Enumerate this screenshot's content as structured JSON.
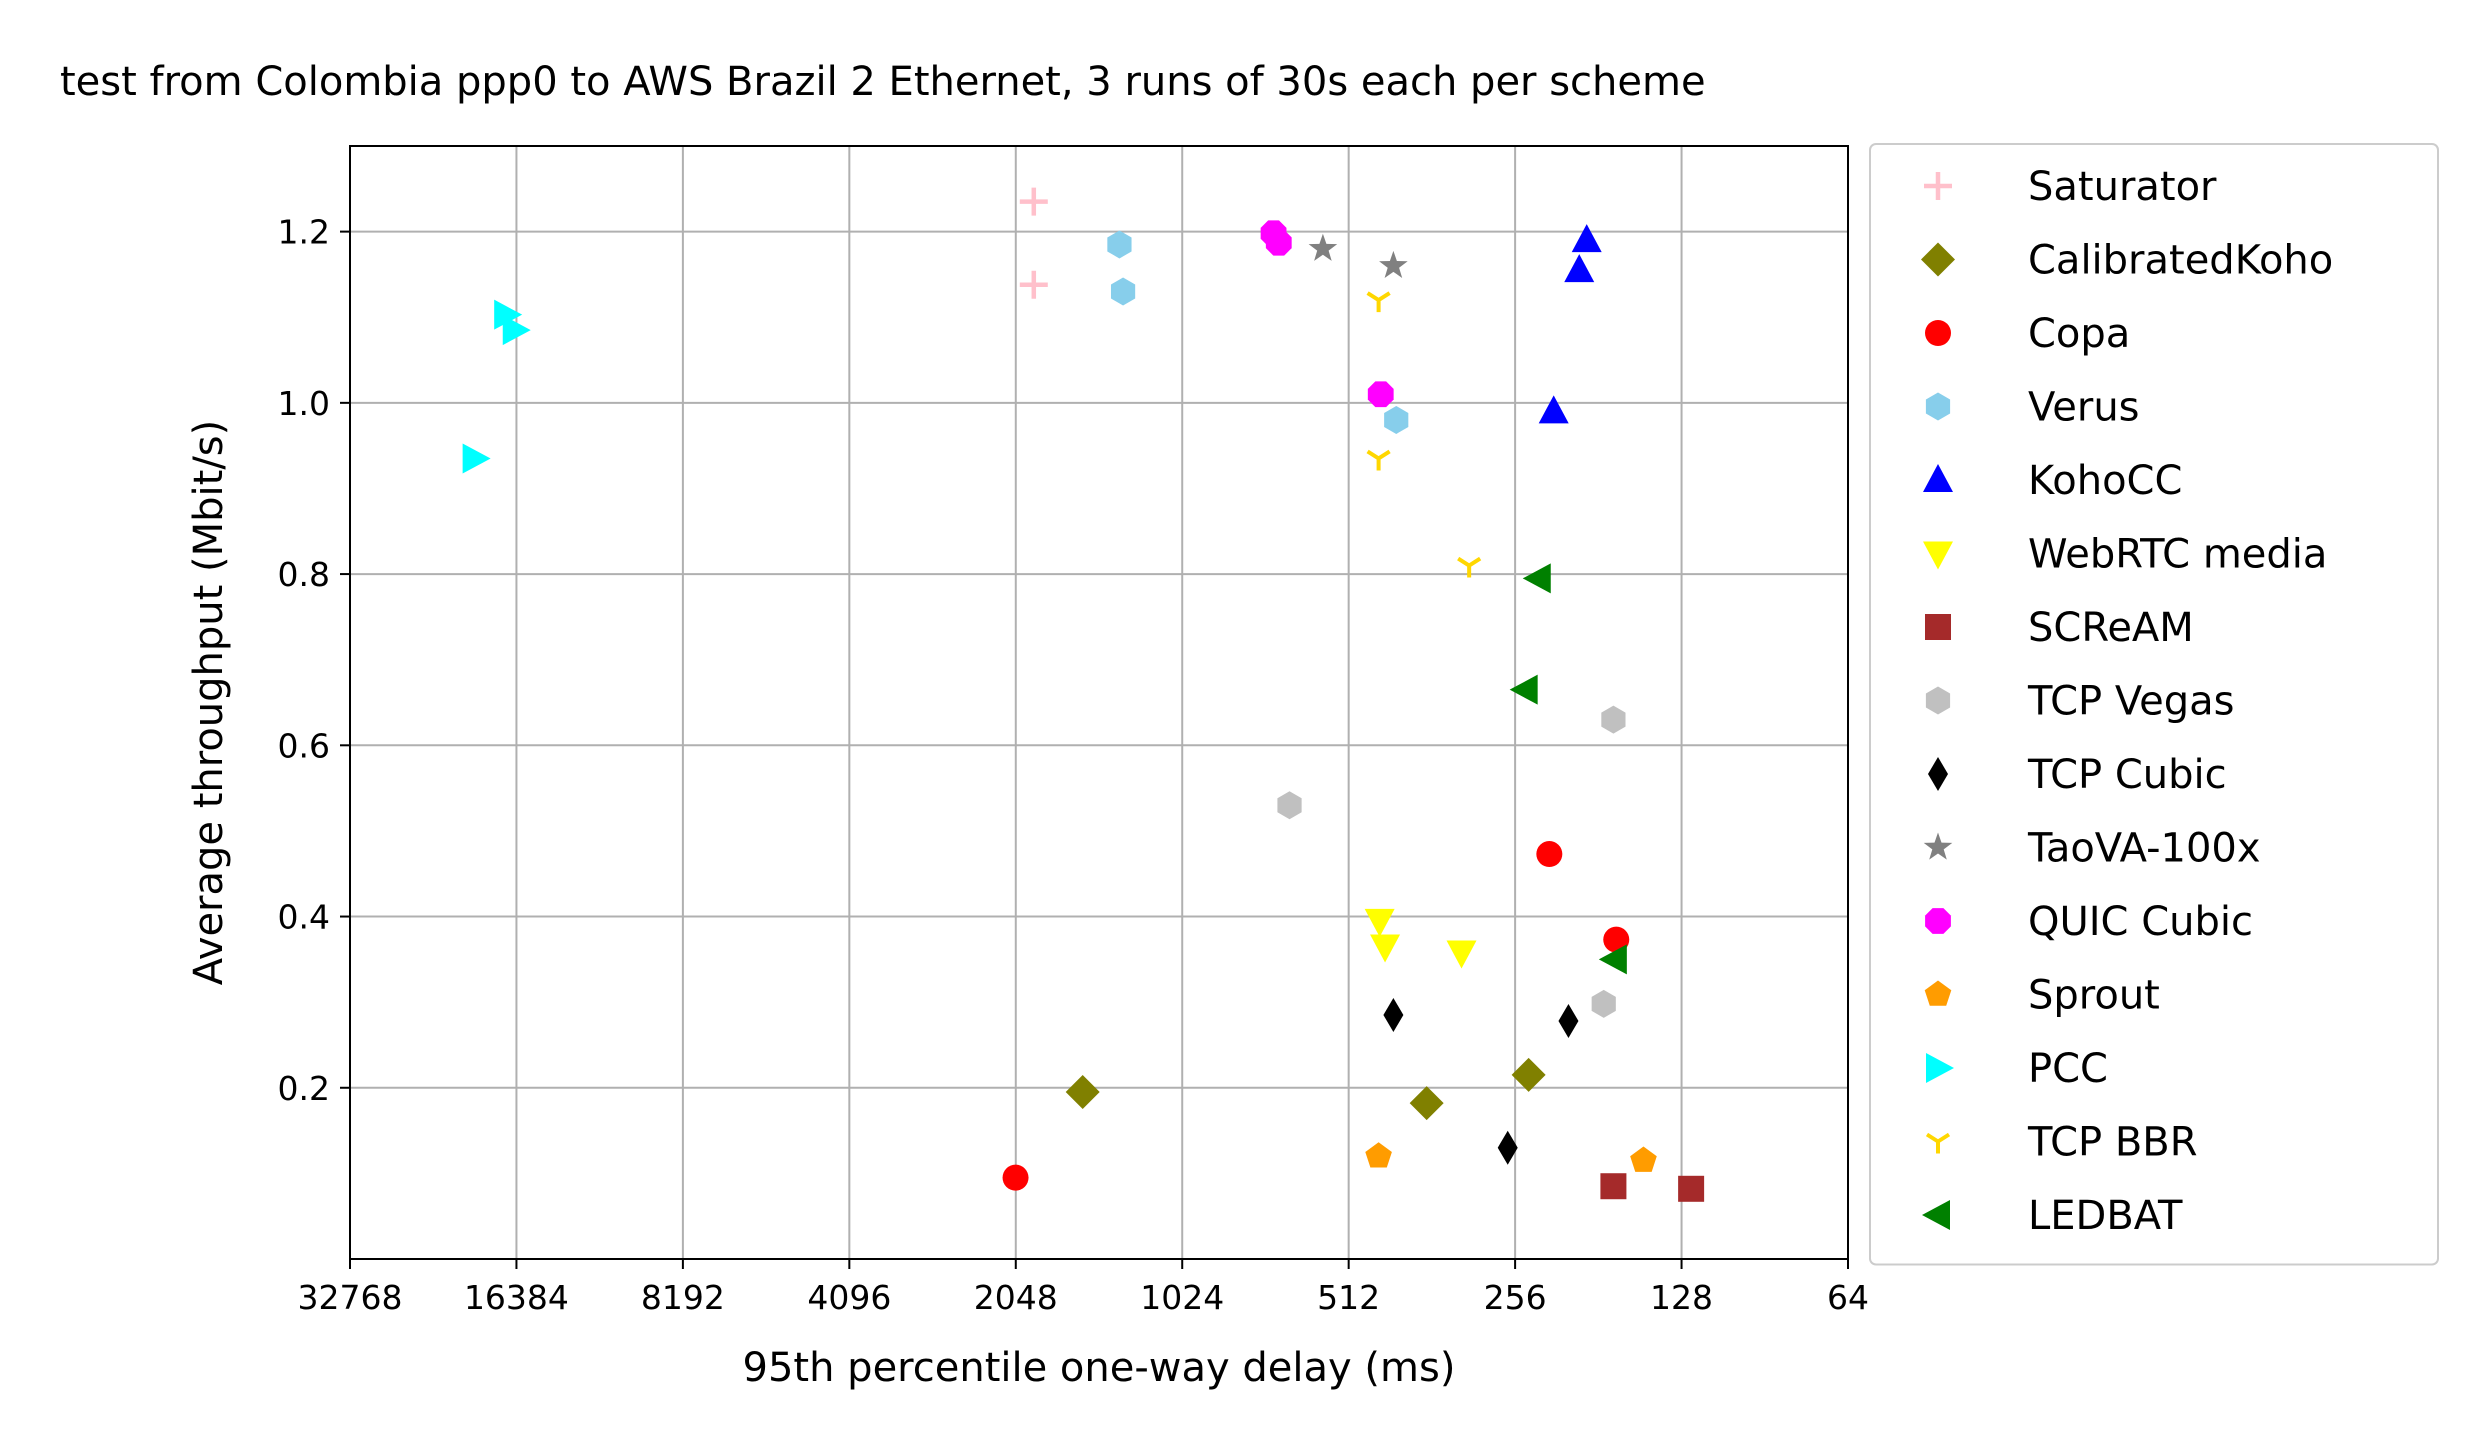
{
  "chart_data": {
    "type": "scatter",
    "title": "test from Colombia ppp0 to AWS Brazil 2 Ethernet, 3 runs of 30s each per scheme",
    "xlabel": "95th percentile one-way delay (ms)",
    "ylabel": "Average throughput (Mbit/s)",
    "x_scale": "log2",
    "x_inverted": true,
    "xlim": [
      32768,
      64
    ],
    "ylim": [
      0.0,
      1.3
    ],
    "x_ticks": [
      32768,
      16384,
      8192,
      4096,
      2048,
      1024,
      512,
      256,
      128,
      64
    ],
    "x_tick_labels": [
      "32768",
      "16384",
      "8192",
      "4096",
      "2048",
      "1024",
      "512",
      "256",
      "128",
      "64"
    ],
    "y_ticks": [
      0.2,
      0.4,
      0.6,
      0.8,
      1.0,
      1.2
    ],
    "y_tick_labels": [
      "0.2",
      "0.4",
      "0.6",
      "0.8",
      "1.0",
      "1.2"
    ],
    "grid": true,
    "legend_position": "outside-right",
    "series": [
      {
        "name": "Saturator",
        "marker": "plus",
        "color": "#ffc0cb",
        "points": [
          [
            1900,
            1.235
          ],
          [
            1900,
            1.138
          ]
        ]
      },
      {
        "name": "CalibratedKoho",
        "marker": "diamond",
        "color": "#808000",
        "points": [
          [
            1550,
            0.195
          ],
          [
            370,
            0.182
          ],
          [
            242,
            0.215
          ]
        ]
      },
      {
        "name": "Copa",
        "marker": "circle",
        "color": "#ff0000",
        "points": [
          [
            2050,
            0.095
          ],
          [
            222,
            0.473
          ],
          [
            168,
            0.373
          ]
        ]
      },
      {
        "name": "Verus",
        "marker": "hexagon",
        "color": "#87ceeb",
        "points": [
          [
            1330,
            1.185
          ],
          [
            1310,
            1.13
          ],
          [
            420,
            0.98
          ]
        ]
      },
      {
        "name": "KohoCC",
        "marker": "triangle-up",
        "color": "#0000ff",
        "points": [
          [
            190,
            1.19
          ],
          [
            196,
            1.155
          ],
          [
            218,
            0.99
          ]
        ]
      },
      {
        "name": "WebRTC media",
        "marker": "triangle-down",
        "color": "#ffff00",
        "points": [
          [
            450,
            0.395
          ],
          [
            440,
            0.365
          ],
          [
            320,
            0.358
          ]
        ]
      },
      {
        "name": "SCReAM",
        "marker": "square",
        "color": "#a52a2a",
        "points": [
          [
            170,
            0.085
          ],
          [
            123,
            0.082
          ]
        ]
      },
      {
        "name": "TCP Vegas",
        "marker": "hexagon",
        "color": "#c0c0c0",
        "points": [
          [
            655,
            0.53
          ],
          [
            170,
            0.63
          ],
          [
            177,
            0.298
          ]
        ]
      },
      {
        "name": "TCP Cubic",
        "marker": "thin-diamond",
        "color": "#000000",
        "points": [
          [
            425,
            0.285
          ],
          [
            205,
            0.278
          ],
          [
            264,
            0.13
          ]
        ]
      },
      {
        "name": "TaoVA-100x",
        "marker": "star",
        "color": "#808080",
        "points": [
          [
            570,
            1.18
          ],
          [
            425,
            1.16
          ]
        ]
      },
      {
        "name": "QUIC Cubic",
        "marker": "octagon",
        "color": "#ff00ff",
        "points": [
          [
            700,
            1.198
          ],
          [
            685,
            1.187
          ],
          [
            448,
            1.01
          ]
        ]
      },
      {
        "name": "Sprout",
        "marker": "pentagon",
        "color": "#ff9c00",
        "points": [
          [
            452,
            0.12
          ],
          [
            150,
            0.115
          ]
        ]
      },
      {
        "name": "PCC",
        "marker": "triangle-right",
        "color": "#00ffff",
        "points": [
          [
            17100,
            1.103
          ],
          [
            16500,
            1.085
          ],
          [
            19500,
            0.935
          ]
        ]
      },
      {
        "name": "TCP BBR",
        "marker": "tri-down",
        "color": "#ffd700",
        "points": [
          [
            452,
            1.12
          ],
          [
            452,
            0.935
          ],
          [
            310,
            0.81
          ]
        ]
      },
      {
        "name": "LEDBAT",
        "marker": "triangle-left",
        "color": "#008000",
        "points": [
          [
            232,
            0.795
          ],
          [
            245,
            0.665
          ],
          [
            169,
            0.35
          ]
        ]
      }
    ]
  }
}
